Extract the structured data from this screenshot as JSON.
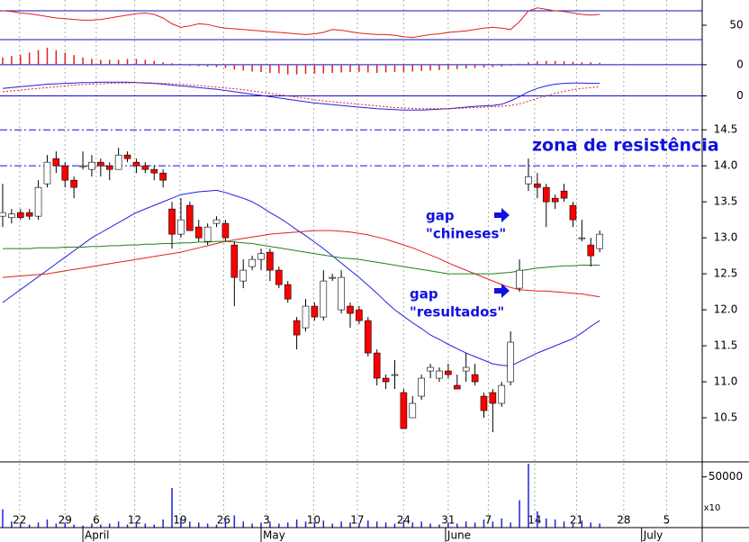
{
  "chart_data": {
    "type": "candlestick",
    "xlim": [
      -0.3,
      78.5
    ],
    "ylim": [
      9.9,
      14.74
    ],
    "yticks": [
      14.5,
      {
        "value": 14,
        "label": "14.0"
      },
      13.5,
      {
        "value": 13,
        "label": "13.0"
      },
      12.5,
      {
        "value": 12,
        "label": "12.0"
      },
      11.5,
      {
        "value": 11,
        "label": "11.0"
      },
      10.5
    ],
    "xticks": [
      {
        "value": 1.9,
        "label": "22"
      },
      {
        "value": 7,
        "label": "29"
      },
      {
        "value": 10.5,
        "label": "6"
      },
      {
        "value": 14.8,
        "label": "12"
      },
      {
        "value": 19.9,
        "label": "19"
      },
      {
        "value": 24.8,
        "label": "26"
      },
      {
        "value": 29.6,
        "label": "3"
      },
      {
        "value": 34.9,
        "label": "10"
      },
      {
        "value": 39.8,
        "label": "17"
      },
      {
        "value": 45,
        "label": "24"
      },
      {
        "value": 50,
        "label": "31"
      },
      {
        "value": 54.5,
        "label": "7"
      },
      {
        "value": 59.7,
        "label": "14"
      },
      {
        "value": 64.4,
        "label": "21"
      },
      {
        "value": 69.7,
        "label": "28"
      },
      {
        "value": 74.5,
        "label": "5"
      }
    ],
    "months": [
      {
        "value": 9,
        "label": "April"
      },
      {
        "value": 29,
        "label": "May"
      },
      {
        "value": 49.7,
        "label": "June"
      },
      {
        "value": 71.7,
        "label": "July"
      }
    ],
    "up_color": "#ffffff",
    "down_color": "#ff0000",
    "grid": true,
    "resistance_lines": [
      14.5,
      14.0
    ],
    "resistance_color": "#1010e0",
    "open": [
      13.3,
      13.28,
      13.35,
      13.35,
      13.3,
      13.75,
      14.1,
      14.0,
      13.8,
      14.0,
      13.95,
      14.05,
      14.0,
      13.95,
      14.15,
      14.05,
      14.0,
      13.95,
      13.9,
      13.4,
      13.05,
      13.45,
      13.15,
      12.95,
      13.2,
      13.2,
      12.9,
      12.4,
      12.6,
      12.7,
      12.8,
      12.55,
      12.35,
      11.85,
      11.75,
      12.05,
      11.9,
      12.45,
      12.0,
      12.05,
      12.0,
      11.85,
      11.4,
      11.05,
      11.1,
      10.85,
      10.5,
      10.8,
      11.15,
      11.05,
      11.15,
      10.95,
      11.15,
      11.1,
      10.8,
      10.85,
      10.7,
      11.0,
      12.3,
      13.75,
      13.75,
      13.7,
      13.55,
      13.65,
      13.45,
      13.0,
      12.9,
      12.85
    ],
    "high": [
      13.75,
      13.4,
      13.4,
      13.4,
      13.8,
      14.15,
      14.2,
      14.05,
      13.85,
      14.2,
      14.15,
      14.1,
      14.05,
      14.25,
      14.2,
      14.1,
      14.05,
      14.0,
      13.95,
      13.5,
      13.55,
      13.5,
      13.25,
      13.2,
      13.3,
      13.25,
      12.95,
      12.7,
      12.75,
      12.85,
      12.85,
      12.6,
      12.4,
      11.9,
      12.15,
      12.1,
      12.55,
      12.5,
      12.55,
      12.1,
      12.05,
      11.9,
      11.45,
      11.1,
      11.3,
      10.9,
      10.8,
      11.1,
      11.25,
      11.2,
      11.25,
      11.1,
      11.4,
      11.25,
      10.85,
      10.9,
      11.0,
      11.7,
      12.7,
      14.1,
      13.9,
      13.75,
      13.6,
      13.75,
      13.5,
      13.25,
      13.0,
      13.1
    ],
    "low": [
      13.15,
      13.2,
      13.25,
      13.25,
      13.25,
      13.7,
      13.9,
      13.7,
      13.55,
      13.95,
      13.85,
      13.85,
      13.8,
      13.95,
      14.05,
      13.9,
      13.9,
      13.8,
      13.7,
      12.85,
      13.0,
      13.1,
      12.95,
      12.9,
      13.15,
      12.95,
      12.05,
      12.3,
      12.55,
      12.55,
      12.4,
      12.3,
      12.1,
      11.45,
      11.7,
      11.85,
      11.85,
      12.4,
      11.95,
      11.75,
      11.8,
      11.35,
      10.95,
      10.9,
      10.9,
      10.35,
      10.5,
      10.75,
      11.05,
      11.0,
      11.05,
      10.9,
      11.0,
      10.95,
      10.5,
      10.3,
      10.65,
      10.95,
      12.25,
      13.65,
      13.55,
      13.15,
      13.4,
      13.5,
      13.15,
      12.95,
      12.6,
      12.8
    ],
    "close": [
      13.35,
      13.33,
      13.28,
      13.3,
      13.7,
      14.05,
      14.0,
      13.8,
      13.7,
      14.0,
      14.05,
      14.0,
      13.95,
      14.15,
      14.1,
      14.0,
      13.95,
      13.9,
      13.8,
      13.05,
      13.25,
      13.1,
      13.0,
      13.15,
      13.25,
      13.0,
      12.45,
      12.55,
      12.7,
      12.78,
      12.55,
      12.35,
      12.15,
      11.65,
      12.05,
      11.9,
      12.4,
      12.45,
      12.45,
      11.95,
      11.85,
      11.4,
      11.05,
      11.0,
      11.1,
      10.35,
      10.7,
      11.05,
      11.2,
      11.15,
      11.1,
      10.9,
      11.2,
      11.0,
      10.6,
      10.7,
      10.95,
      11.55,
      12.55,
      13.85,
      13.7,
      13.5,
      13.5,
      13.55,
      13.25,
      13.0,
      12.75,
      13.05
    ],
    "overlays": [
      {
        "color": "#2020e0",
        "values": [
          12.1,
          12.19,
          12.28,
          12.37,
          12.46,
          12.55,
          12.64,
          12.73,
          12.82,
          12.91,
          13.0,
          13.07,
          13.14,
          13.21,
          13.28,
          13.35,
          13.4,
          13.45,
          13.5,
          13.55,
          13.6,
          13.62,
          13.64,
          13.65,
          13.66,
          13.63,
          13.59,
          13.55,
          13.5,
          13.43,
          13.35,
          13.28,
          13.2,
          13.11,
          13.03,
          12.94,
          12.85,
          12.75,
          12.65,
          12.55,
          12.45,
          12.34,
          12.23,
          12.11,
          12.0,
          11.91,
          11.82,
          11.74,
          11.65,
          11.59,
          11.52,
          11.46,
          11.4,
          11.35,
          11.3,
          11.25,
          11.23,
          11.22,
          11.28,
          11.34,
          11.4,
          11.45,
          11.5,
          11.55,
          11.6,
          11.68,
          11.77,
          11.85
        ]
      },
      {
        "color": "#e02020",
        "values": [
          12.45,
          12.46,
          12.47,
          12.48,
          12.49,
          12.5,
          12.52,
          12.54,
          12.56,
          12.58,
          12.6,
          12.62,
          12.64,
          12.66,
          12.68,
          12.7,
          12.72,
          12.74,
          12.76,
          12.78,
          12.8,
          12.83,
          12.86,
          12.89,
          12.92,
          12.95,
          12.97,
          12.99,
          13.01,
          13.03,
          13.05,
          13.06,
          13.07,
          13.08,
          13.09,
          13.1,
          13.1,
          13.1,
          13.09,
          13.08,
          13.06,
          13.04,
          13.01,
          12.98,
          12.94,
          12.9,
          12.86,
          12.81,
          12.76,
          12.71,
          12.65,
          12.6,
          12.55,
          12.5,
          12.45,
          12.4,
          12.35,
          12.31,
          12.28,
          12.27,
          12.26,
          12.26,
          12.25,
          12.24,
          12.23,
          12.22,
          12.2,
          12.18
        ]
      },
      {
        "color": "#208020",
        "values": [
          12.85,
          12.85,
          12.85,
          12.85,
          12.86,
          12.86,
          12.86,
          12.87,
          12.87,
          12.87,
          12.88,
          12.88,
          12.89,
          12.89,
          12.9,
          12.9,
          12.91,
          12.91,
          12.92,
          12.92,
          12.93,
          12.93,
          12.94,
          12.94,
          12.95,
          12.95,
          12.94,
          12.93,
          12.92,
          12.9,
          12.88,
          12.86,
          12.84,
          12.82,
          12.8,
          12.78,
          12.76,
          12.74,
          12.72,
          12.71,
          12.7,
          12.68,
          12.66,
          12.64,
          12.62,
          12.6,
          12.58,
          12.56,
          12.54,
          12.52,
          12.5,
          12.5,
          12.5,
          12.5,
          12.5,
          12.5,
          12.51,
          12.52,
          12.54,
          12.56,
          12.58,
          12.59,
          12.6,
          12.61,
          12.61,
          12.62,
          12.62,
          12.62
        ]
      }
    ],
    "annotations": [
      "zona de resistência",
      "gap",
      "\"chineses\"",
      "gap",
      "\"resultados\""
    ],
    "rsi": {
      "ylim": [
        10,
        85
      ],
      "yticks": [
        50
      ],
      "hlines": [
        70,
        30
      ],
      "color": "#e02020",
      "values": [
        70,
        69,
        67,
        66,
        64,
        62,
        60,
        59,
        58,
        57,
        57,
        58,
        60,
        62,
        64,
        66,
        67,
        65,
        60,
        52,
        47,
        49,
        52,
        51,
        48,
        46,
        45,
        44,
        43,
        42,
        41,
        40,
        39,
        38,
        37,
        38,
        40,
        44,
        43,
        41,
        39,
        38,
        37,
        37,
        36,
        34,
        33,
        35,
        37,
        38,
        40,
        41,
        42,
        44,
        46,
        47,
        46,
        44,
        55,
        70,
        74,
        72,
        70,
        69,
        67,
        65,
        64,
        65
      ]
    },
    "histogram": {
      "ylim": [
        -0.3,
        0.5
      ],
      "yticks": [
        0
      ],
      "hlines": [
        0
      ],
      "color": "#e02020",
      "values": [
        0.15,
        0.18,
        0.2,
        0.25,
        0.3,
        0.35,
        0.3,
        0.25,
        0.2,
        0.15,
        0.12,
        0.1,
        0.1,
        0.1,
        0.12,
        0.12,
        0.1,
        0.08,
        0.05,
        0.03,
        0.0,
        -0.02,
        -0.03,
        -0.04,
        -0.05,
        -0.07,
        -0.1,
        -0.12,
        -0.14,
        -0.15,
        -0.17,
        -0.18,
        -0.2,
        -0.2,
        -0.19,
        -0.18,
        -0.18,
        -0.17,
        -0.16,
        -0.15,
        -0.15,
        -0.16,
        -0.17,
        -0.16,
        -0.15,
        -0.15,
        -0.14,
        -0.13,
        -0.12,
        -0.11,
        -0.1,
        -0.09,
        -0.08,
        -0.07,
        -0.06,
        -0.05,
        -0.04,
        -0.02,
        0.02,
        0.05,
        0.07,
        0.08,
        0.08,
        0.07,
        0.06,
        0.05,
        0.05,
        0.04
      ]
    },
    "macd": {
      "ylim": [
        -0.4,
        0.4
      ],
      "yticks": [
        0
      ],
      "hlines": [
        0
      ],
      "series": [
        {
          "color": "#2020e0",
          "values": [
            0.18,
            0.2,
            0.22,
            0.24,
            0.26,
            0.28,
            0.29,
            0.3,
            0.31,
            0.32,
            0.32,
            0.33,
            0.33,
            0.33,
            0.33,
            0.32,
            0.31,
            0.3,
            0.28,
            0.26,
            0.24,
            0.22,
            0.2,
            0.18,
            0.16,
            0.13,
            0.1,
            0.07,
            0.04,
            0.01,
            -0.02,
            -0.05,
            -0.08,
            -0.11,
            -0.14,
            -0.17,
            -0.19,
            -0.21,
            -0.23,
            -0.25,
            -0.27,
            -0.29,
            -0.31,
            -0.32,
            -0.33,
            -0.34,
            -0.34,
            -0.34,
            -0.33,
            -0.32,
            -0.31,
            -0.29,
            -0.27,
            -0.25,
            -0.24,
            -0.23,
            -0.2,
            -0.12,
            -0.02,
            0.1,
            0.18,
            0.24,
            0.28,
            0.3,
            0.31,
            0.31,
            0.3,
            0.3
          ]
        },
        {
          "color": "#e02020",
          "dashed": true,
          "values": [
            0.1,
            0.12,
            0.14,
            0.16,
            0.18,
            0.2,
            0.22,
            0.24,
            0.26,
            0.27,
            0.28,
            0.29,
            0.3,
            0.31,
            0.31,
            0.32,
            0.32,
            0.31,
            0.3,
            0.29,
            0.28,
            0.26,
            0.25,
            0.23,
            0.21,
            0.19,
            0.17,
            0.15,
            0.12,
            0.09,
            0.06,
            0.03,
            0.0,
            -0.03,
            -0.06,
            -0.09,
            -0.12,
            -0.14,
            -0.16,
            -0.18,
            -0.2,
            -0.22,
            -0.24,
            -0.26,
            -0.28,
            -0.29,
            -0.3,
            -0.31,
            -0.31,
            -0.31,
            -0.31,
            -0.3,
            -0.29,
            -0.28,
            -0.27,
            -0.26,
            -0.25,
            -0.23,
            -0.19,
            -0.13,
            -0.06,
            0.0,
            0.06,
            0.11,
            0.15,
            0.18,
            0.2,
            0.22
          ]
        }
      ]
    },
    "volume": {
      "ylim": [
        0,
        63000
      ],
      "yticks": [
        50000
      ],
      "unit_label": "x10",
      "color": "#2020e0",
      "values": [
        18000,
        6000,
        4000,
        3000,
        5000,
        8000,
        4000,
        5000,
        3000,
        2000,
        4000,
        3000,
        4000,
        6000,
        3000,
        5000,
        4000,
        3000,
        8000,
        39000,
        9000,
        6000,
        5000,
        4000,
        3000,
        7000,
        12000,
        6000,
        4000,
        5000,
        6000,
        4000,
        5000,
        8000,
        6000,
        5000,
        7000,
        4000,
        6000,
        5000,
        4000,
        7000,
        6000,
        5000,
        4000,
        7000,
        5000,
        6000,
        4000,
        3000,
        5000,
        4000,
        6000,
        5000,
        8000,
        6000,
        9000,
        5000,
        27000,
        63000,
        16000,
        9000,
        8000,
        6000,
        5000,
        7000,
        5000,
        4000
      ]
    }
  }
}
